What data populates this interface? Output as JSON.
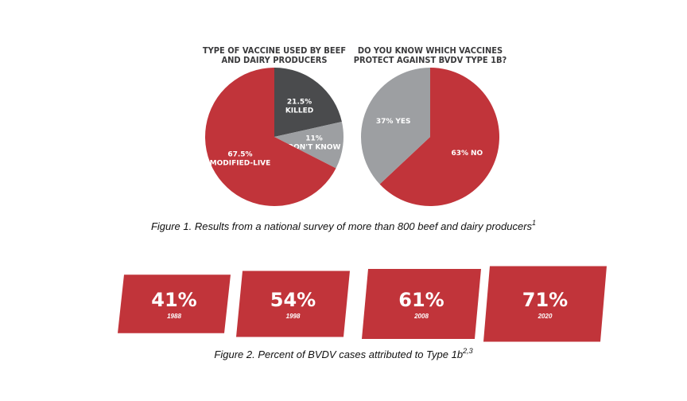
{
  "chart_data": [
    {
      "type": "pie",
      "title": [
        "TYPE OF VACCINE USED BY BEEF",
        "AND DAIRY PRODUCERS"
      ],
      "categories": [
        "KILLED",
        "DON'T KNOW",
        "MODIFIED-LIVE"
      ],
      "values": [
        21.5,
        11,
        67.5
      ],
      "value_labels": [
        "21.5%",
        "11%",
        "67.5%"
      ],
      "colors": [
        "#4a4b4d",
        "#9d9fa2",
        "#c1343a"
      ]
    },
    {
      "type": "pie",
      "title": [
        "DO YOU KNOW WHICH VACCINES",
        "PROTECT AGAINST BVDV TYPE 1B?"
      ],
      "categories": [
        "NO",
        "YES"
      ],
      "values": [
        63,
        37
      ],
      "value_labels": [
        "63%",
        "37%"
      ],
      "colors": [
        "#c1343a",
        "#9d9fa2"
      ]
    },
    {
      "type": "bar",
      "categories": [
        "1988",
        "1998",
        "2008",
        "2020"
      ],
      "values": [
        41,
        54,
        61,
        71
      ],
      "value_labels": [
        "41%",
        "54%",
        "61%",
        "71%"
      ],
      "color": "#c1343a"
    }
  ],
  "figure_1": {
    "caption": "Figure 1. Results from a national survey of more than 800 beef and dairy producers",
    "note": "1"
  },
  "figure_2": {
    "caption": "Figure 2. Percent of BVDV cases attributed to Type 1b",
    "note": "2,3"
  }
}
